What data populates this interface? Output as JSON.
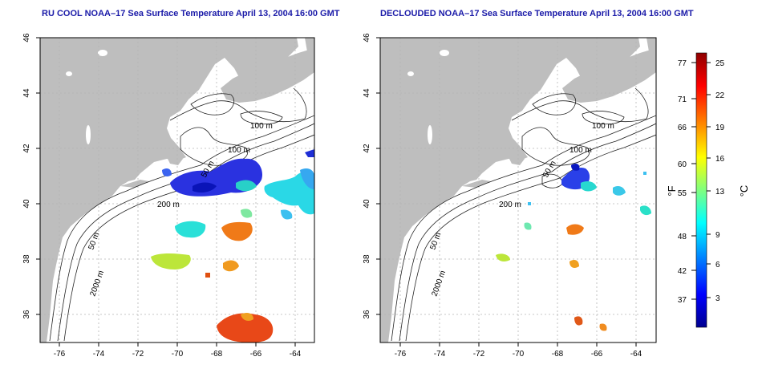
{
  "panels": [
    {
      "id": "left",
      "title": "RU COOL NOAA–17 Sea Surface Temperature April 13, 2004 16:00 GMT",
      "contour_labels": [
        "100 m",
        "100 m",
        "50 m",
        "200 m",
        "50 m",
        "2000 m"
      ]
    },
    {
      "id": "right",
      "title": "DECLOUDED NOAA–17 Sea Surface Temperature April 13, 2004 16:00 GMT",
      "contour_labels": [
        "100 m",
        "100 m",
        "50 m",
        "200 m",
        "50 m",
        "2000 m"
      ]
    }
  ],
  "axes": {
    "x_ticks": [
      "-76",
      "-74",
      "-72",
      "-70",
      "-68",
      "-66",
      "-64"
    ],
    "y_ticks": [
      "46",
      "44",
      "42",
      "40",
      "38",
      "36"
    ],
    "lon_range": [
      -77,
      -63
    ],
    "lat_range": [
      35,
      46
    ]
  },
  "colorbar": {
    "fahrenheit_unit": "°F",
    "celsius_unit": "°C",
    "fahrenheit_ticks": [
      "77",
      "71",
      "66",
      "60",
      "55",
      "48",
      "42",
      "37"
    ],
    "celsius_ticks": [
      "25",
      "22",
      "19",
      "16",
      "13",
      "9",
      "6",
      "3"
    ],
    "colors": [
      "#00008f",
      "#0000ff",
      "#007fff",
      "#00ffff",
      "#7fff7f",
      "#ffff00",
      "#ff7f00",
      "#ff0000",
      "#8f0000"
    ]
  }
}
